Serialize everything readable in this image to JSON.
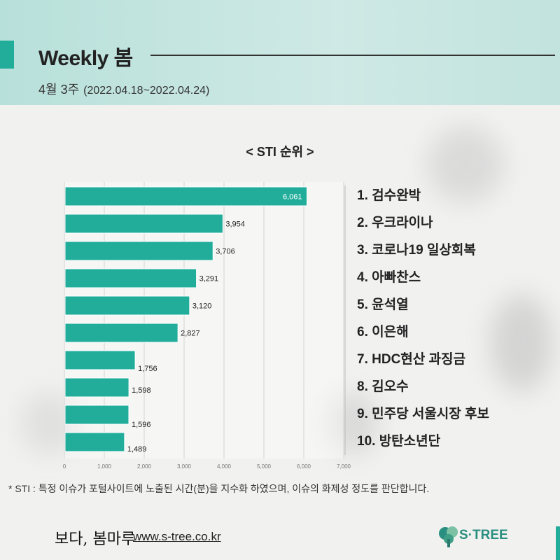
{
  "header": {
    "title": "Weekly 봄",
    "week": "4월 3주",
    "date_range": "(2022.04.18~2022.04.24)"
  },
  "chart_data": {
    "type": "bar",
    "orientation": "horizontal",
    "title": "< STI 순위 >",
    "categories": [
      "검수완박",
      "우크라이나",
      "코로나19 일상회복",
      "아빠찬스",
      "윤석열",
      "이은해",
      "HDC현산 과징금",
      "김오수",
      "민주당 서울시장 후보",
      "방탄소년단"
    ],
    "values": [
      6061,
      3954,
      3706,
      3291,
      3120,
      2827,
      1756,
      1598,
      1596,
      1489
    ],
    "value_labels": [
      "6,061",
      "3,954",
      "3,706",
      "3,291",
      "3,120",
      "2,827",
      "1,756",
      "1,598",
      "1,596",
      "1,489"
    ],
    "xlim": [
      0,
      7000
    ],
    "x_ticks": [
      "0",
      "1,000",
      "2,000",
      "3,000",
      "4,000",
      "5,000",
      "6,000",
      "7,000"
    ],
    "grid": true,
    "bar_color": "#22ad9b"
  },
  "ranking": [
    "1. 검수완박",
    "2. 우크라이나",
    "3. 코로나19 일상회복",
    "4. 아빠찬스",
    "5. 윤석열",
    "6. 이은해",
    "7. HDC현산 과징금",
    "8. 김오수",
    "9. 민주당 서울시장 후보",
    "10. 방탄소년단"
  ],
  "footnote": "* STI : 특정 이슈가 포털사이트에 노출된 시간(분)을 지수화 하였으며, 이슈의 화제성 정도를 판단합니다.",
  "footer": {
    "brand": "보다, 봄마루",
    "url": "www.s-tree.co.kr",
    "logo_text": "S·TREE"
  },
  "colors": {
    "accent": "#22ad9b",
    "header_bg": "#c2e3de"
  }
}
